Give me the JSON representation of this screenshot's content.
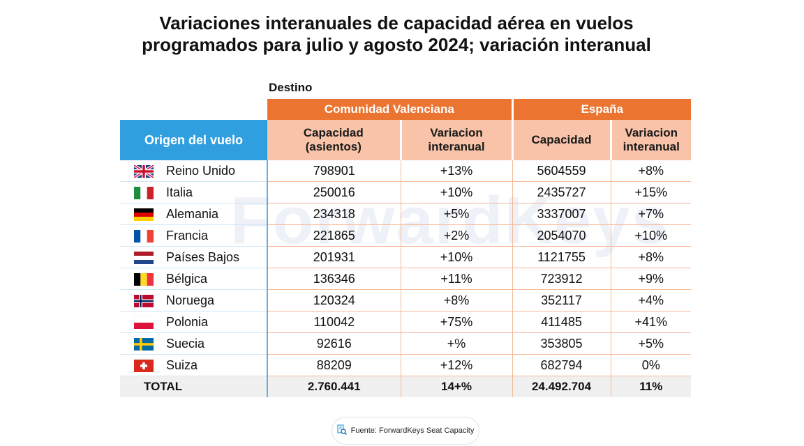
{
  "title_line1": "Variaciones interanuales de capacidad aérea en vuelos",
  "title_line2": "programados para julio y agosto 2024; variación interanual",
  "watermark": "ForwardKeys",
  "destino_label": "Destino",
  "groups": [
    "Comunidad Valenciana",
    "España"
  ],
  "headers": {
    "origin": "Origen del vuelo",
    "cv_capacity_line1": "Capacidad",
    "cv_capacity_line2": "(asientos)",
    "cv_var_line1": "Variacion",
    "cv_var_line2": "interanual",
    "es_capacity": "Capacidad",
    "es_var_line1": "Variacion",
    "es_var_line2": "interanual"
  },
  "chart_data": {
    "type": "table",
    "columns": [
      "Origen del vuelo",
      "Comunidad Valenciana - Capacidad (asientos)",
      "Comunidad Valenciana - Variacion interanual",
      "España - Capacidad",
      "España - Variacion interanual"
    ],
    "rows": [
      {
        "origin": "Reino Unido",
        "flag": "uk-flag-icon",
        "cv_capacity": "798901",
        "cv_var": "+13%",
        "es_capacity": "5604559",
        "es_var": "+8%"
      },
      {
        "origin": "Italia",
        "flag": "italy-flag-icon",
        "cv_capacity": "250016",
        "cv_var": "+10%",
        "es_capacity": "2435727",
        "es_var": "+15%"
      },
      {
        "origin": "Alemania",
        "flag": "germany-flag-icon",
        "cv_capacity": "234318",
        "cv_var": "+5%",
        "es_capacity": "3337007",
        "es_var": "+7%"
      },
      {
        "origin": "Francia",
        "flag": "france-flag-icon",
        "cv_capacity": "221865",
        "cv_var": "+2%",
        "es_capacity": "2054070",
        "es_var": "+10%"
      },
      {
        "origin": "Países Bajos",
        "flag": "netherlands-flag-icon",
        "cv_capacity": "201931",
        "cv_var": "+10%",
        "es_capacity": "1121755",
        "es_var": "+8%"
      },
      {
        "origin": "Bélgica",
        "flag": "belgium-flag-icon",
        "cv_capacity": "136346",
        "cv_var": "+11%",
        "es_capacity": "723912",
        "es_var": "+9%"
      },
      {
        "origin": "Noruega",
        "flag": "norway-flag-icon",
        "cv_capacity": "120324",
        "cv_var": "+8%",
        "es_capacity": "352117",
        "es_var": "+4%"
      },
      {
        "origin": "Polonia",
        "flag": "poland-flag-icon",
        "cv_capacity": "110042",
        "cv_var": "+75%",
        "es_capacity": "411485",
        "es_var": "+41%"
      },
      {
        "origin": "Suecia",
        "flag": "sweden-flag-icon",
        "cv_capacity": "92616",
        "cv_var": "+%",
        "es_capacity": "353805",
        "es_var": "+5%"
      },
      {
        "origin": "Suiza",
        "flag": "switzerland-flag-icon",
        "cv_capacity": "88209",
        "cv_var": "+12%",
        "es_capacity": "682794",
        "es_var": "0%"
      }
    ],
    "total": {
      "label": "TOTAL",
      "cv_capacity": "2.760.441",
      "cv_var": "14+%",
      "es_capacity": "24.492.704",
      "es_var": "11%"
    }
  },
  "colors": {
    "group_header": "#ec7431",
    "sub_header": "#f8c3a8",
    "origin_header": "#2f9fe0",
    "total_row": "#f0f0f0"
  },
  "source": {
    "icon": "magnifier-document-icon",
    "text": "Fuente: ForwardKeys Seat Capacity"
  }
}
